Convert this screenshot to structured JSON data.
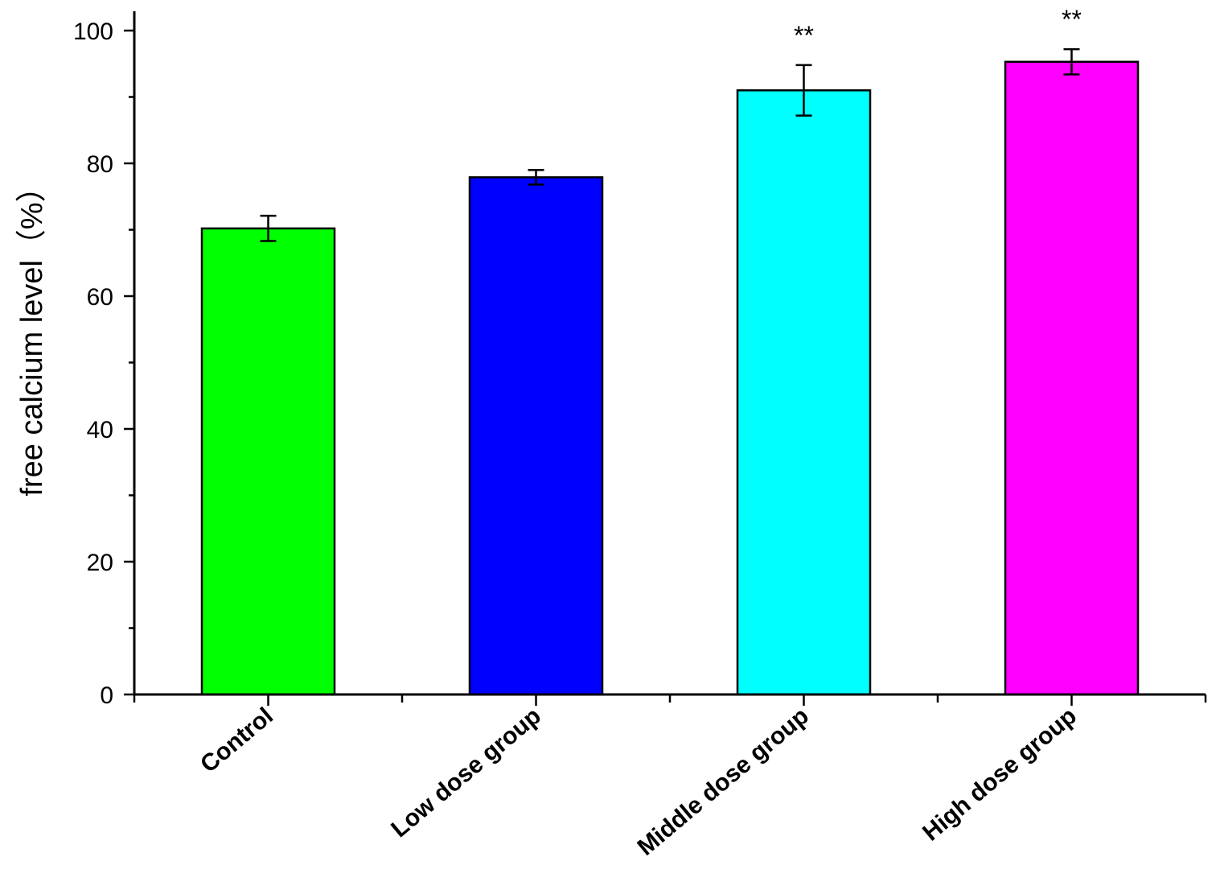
{
  "chart_data": {
    "type": "bar",
    "title": "",
    "xlabel": "",
    "ylabel": "free calcium level（%）",
    "ylim": [
      0,
      100
    ],
    "yticks": [
      0,
      20,
      40,
      60,
      80,
      100
    ],
    "categories": [
      "Control",
      "Low dose group",
      "Middle dose group",
      "High dose group"
    ],
    "values": [
      70.2,
      77.9,
      91.0,
      95.3
    ],
    "errors": [
      1.9,
      1.1,
      3.8,
      1.9
    ],
    "annotations": [
      "",
      "",
      "**",
      "**"
    ],
    "colors": [
      "#00ff00",
      "#0000ff",
      "#00ffff",
      "#ff00ff"
    ],
    "grid": false,
    "legend": "none"
  }
}
